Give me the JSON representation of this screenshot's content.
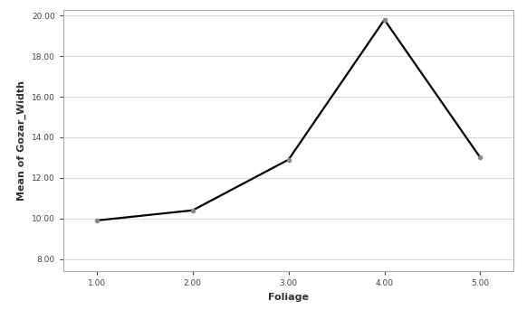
{
  "chart_data": {
    "type": "line",
    "x_label": "Foliage",
    "y_label": "Mean of Gozar_Width",
    "categories": [
      "1.00",
      "2.00",
      "3.00",
      "4.00",
      "5.00"
    ],
    "values": [
      9.9,
      10.4,
      12.9,
      19.8,
      13.0
    ],
    "color": "#000000",
    "marker": "o",
    "ylim": [
      7.4,
      20.3
    ],
    "yticks": [
      {
        "value": 8,
        "label": "8.00"
      },
      {
        "value": 10,
        "label": "10.00"
      },
      {
        "value": 12,
        "label": "12.00"
      },
      {
        "value": 14,
        "label": "14.00"
      },
      {
        "value": 16,
        "label": "16.00"
      },
      {
        "value": 18,
        "label": "18.00"
      },
      {
        "value": 20,
        "label": "20.00"
      }
    ],
    "grid": true
  }
}
